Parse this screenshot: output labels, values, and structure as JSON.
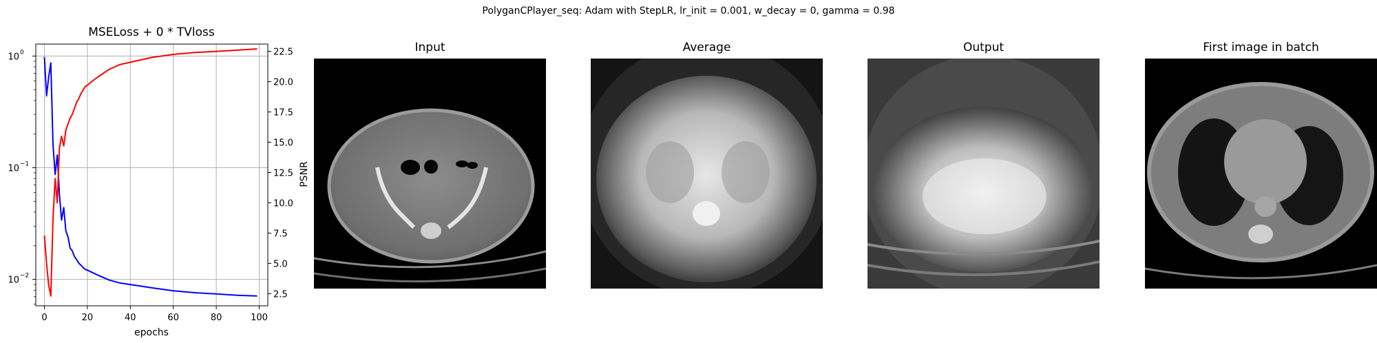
{
  "figure": {
    "title": "PolyganCPlayer_seq: Adam with StepLR, lr_init = 0.001, w_decay = 0, gamma = 0.98"
  },
  "chart_data": {
    "type": "line",
    "title": "MSELoss + 0 * TVloss",
    "xlabel": "epochs",
    "ylabel": "",
    "ylabel_right": "PSNR",
    "xlim": [
      -4,
      104
    ],
    "ylim": [
      0.0058,
      1.28
    ],
    "yscale": "log",
    "ylim_right": [
      1.5,
      23.1
    ],
    "grid": true,
    "x_ticks": [
      "0",
      "20",
      "40",
      "60",
      "80",
      "100"
    ],
    "y_ticks": [
      "10",
      "10",
      "10"
    ],
    "y_tick_exponents": [
      "0",
      "−1",
      "−2"
    ],
    "y_right_ticks": [
      "2.5",
      "5.0",
      "7.5",
      "10.0",
      "12.5",
      "15.0",
      "17.5",
      "20.0",
      "22.5"
    ],
    "series": [
      {
        "axis": "left",
        "color": "#0000ff",
        "x": [
          0,
          1,
          2,
          3,
          4,
          5,
          6,
          7,
          8,
          9,
          10,
          11,
          12,
          13,
          14,
          15,
          16,
          17,
          18,
          19,
          20,
          22,
          25,
          30,
          35,
          40,
          50,
          60,
          70,
          80,
          90,
          99
        ],
        "y": [
          0.98,
          0.44,
          0.65,
          0.87,
          0.16,
          0.087,
          0.13,
          0.058,
          0.034,
          0.044,
          0.027,
          0.024,
          0.019,
          0.018,
          0.016,
          0.015,
          0.014,
          0.0134,
          0.0128,
          0.0123,
          0.0121,
          0.0116,
          0.0109,
          0.0099,
          0.0093,
          0.009,
          0.0084,
          0.0079,
          0.0076,
          0.0074,
          0.0072,
          0.0071
        ]
      },
      {
        "axis": "right",
        "color": "#ff0000",
        "x": [
          0,
          1,
          2,
          3,
          4,
          5,
          6,
          7,
          8,
          9,
          10,
          11,
          12,
          13,
          14,
          15,
          16,
          17,
          18,
          19,
          20,
          22,
          25,
          30,
          35,
          40,
          50,
          60,
          70,
          80,
          90,
          99
        ],
        "y": [
          7.3,
          5.0,
          3.2,
          2.3,
          8.7,
          12.0,
          10.0,
          14.5,
          15.5,
          14.7,
          16.0,
          16.5,
          17.0,
          17.3,
          17.8,
          18.3,
          18.6,
          19.0,
          19.3,
          19.6,
          19.7,
          20.0,
          20.4,
          21.0,
          21.4,
          21.6,
          22.0,
          22.25,
          22.4,
          22.5,
          22.6,
          22.7
        ]
      }
    ]
  },
  "panels": [
    {
      "title": "Input"
    },
    {
      "title": "Average"
    },
    {
      "title": "Output"
    },
    {
      "title": "First image in batch"
    }
  ]
}
